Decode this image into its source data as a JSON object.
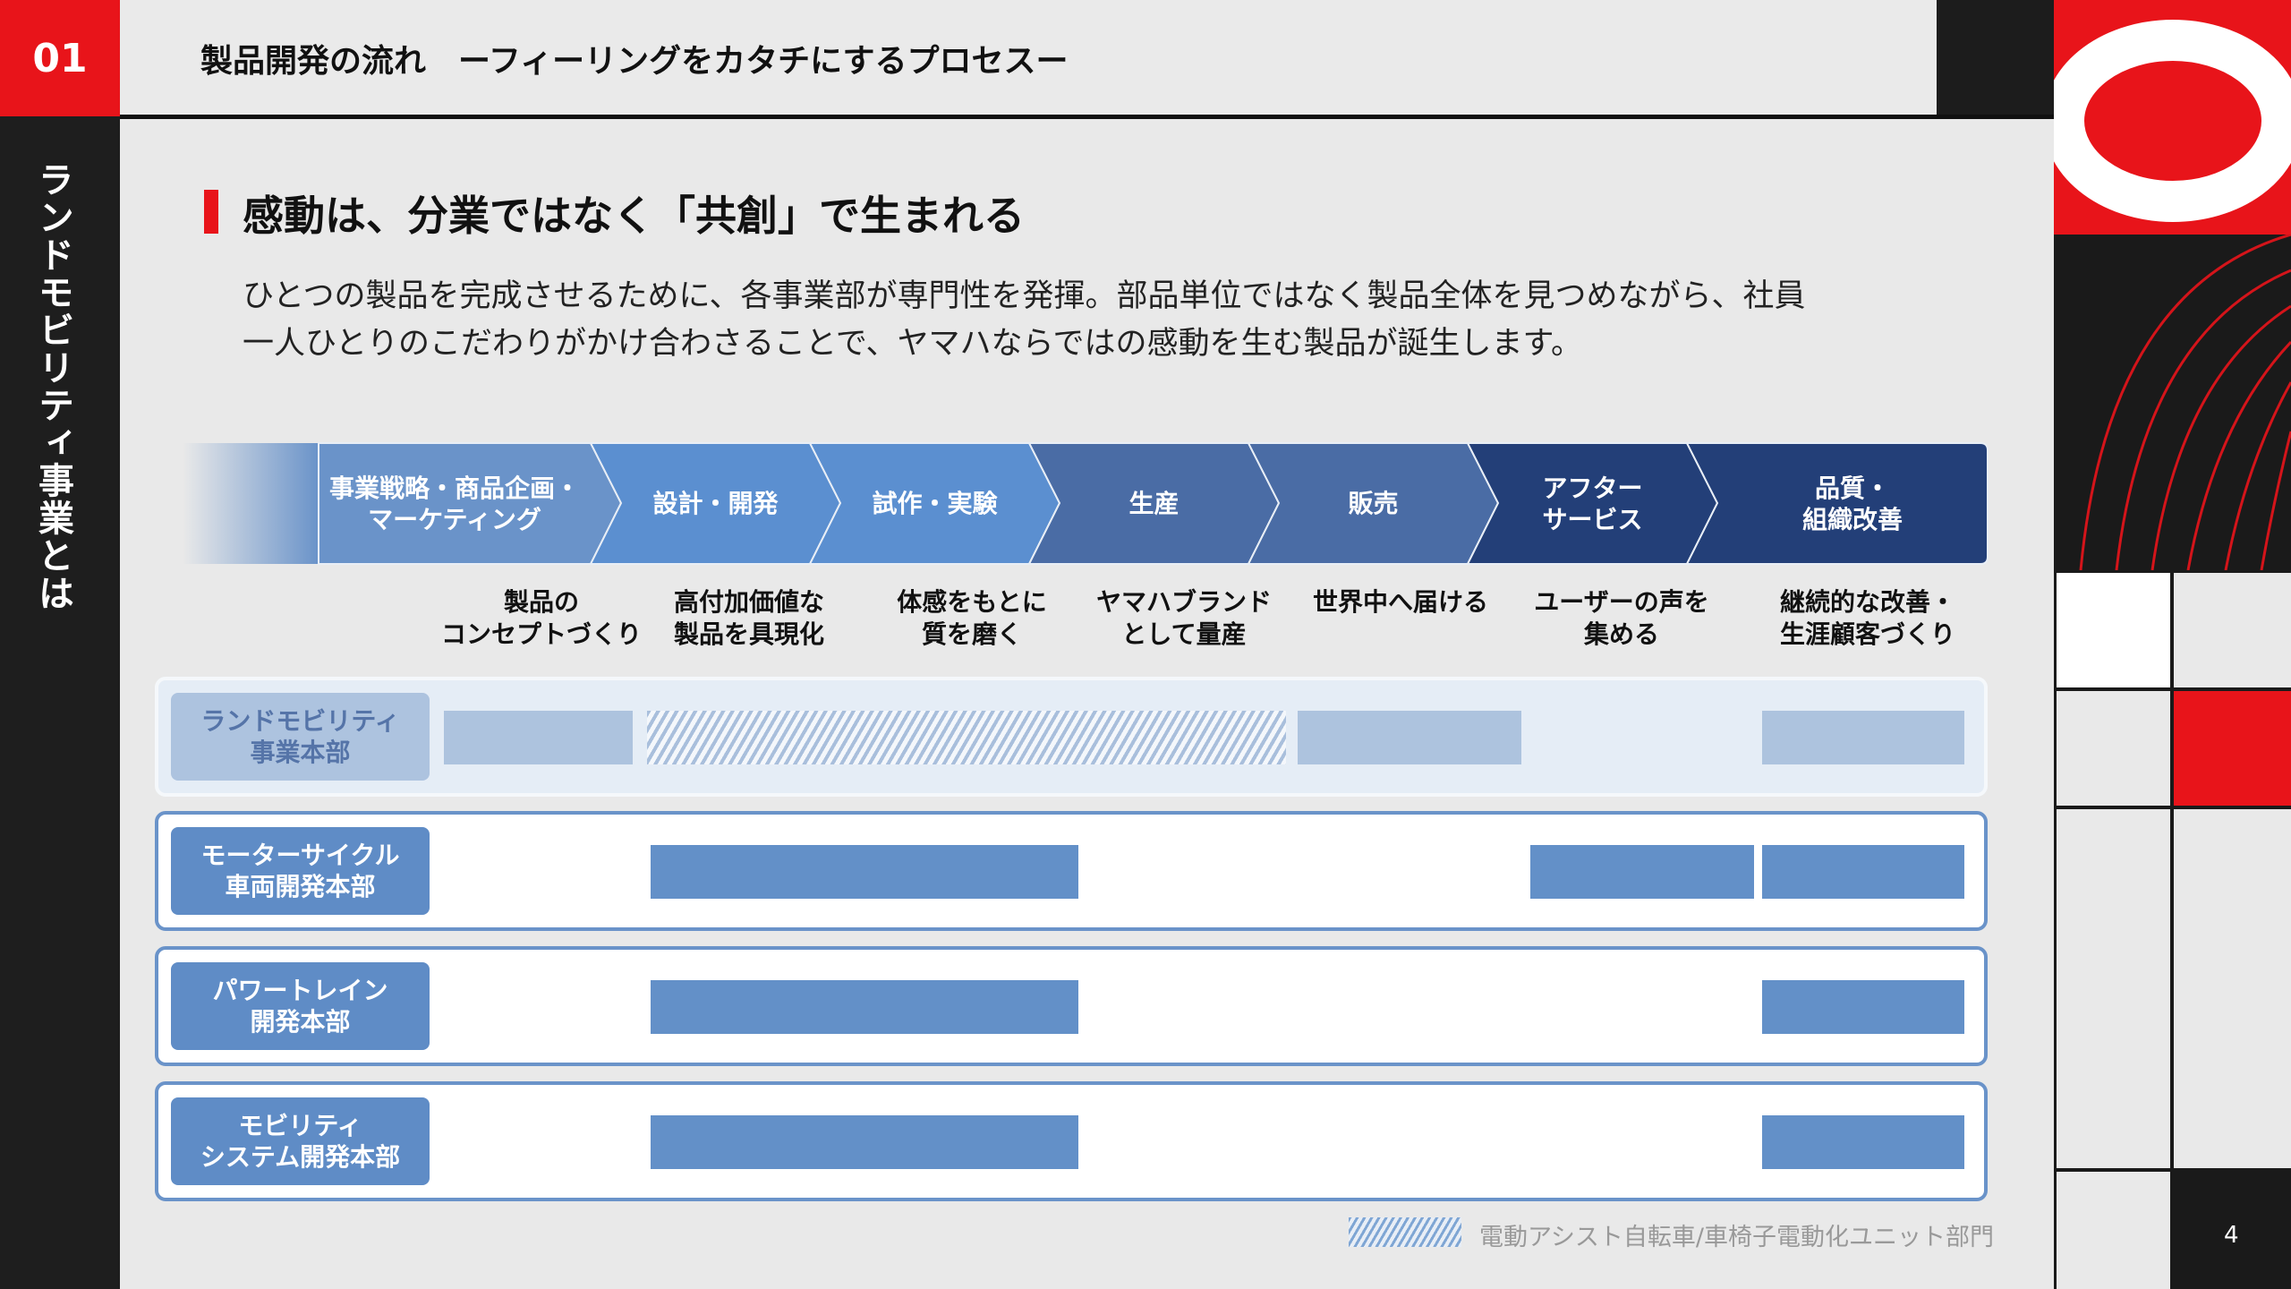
{
  "header": {
    "number": "01",
    "title": "製品開発の流れ　ーフィーリングをカタチにするプロセスー"
  },
  "sidebar": {
    "label": "ランドモビリティ事業とは"
  },
  "headline": "感動は、分業ではなく「共創」で生まれる",
  "body": [
    "ひとつの製品を完成させるために、各事業部が専門性を発揮。部品単位ではなく製品全体を見つめながら、社員",
    "一人ひとりのこだわりがかけ合わさることで、ヤマハならではの感動を生む製品が誕生します。"
  ],
  "stages": [
    {
      "label": "事業戦略・商品企画・\nマーケティング",
      "desc": "製品の\nコンセプトづくり",
      "color": "#6a93c9"
    },
    {
      "label": "設計・開発",
      "desc": "高付加価値な\n製品を具現化",
      "color": "#5b8fd0"
    },
    {
      "label": "試作・実験",
      "desc": "体感をもとに\n質を磨く",
      "color": "#5b8fd0"
    },
    {
      "label": "生産",
      "desc": "ヤマハブランド\nとして量産",
      "color": "#4a6ca5"
    },
    {
      "label": "販売",
      "desc": "世界中へ届ける",
      "color": "#4a6ca5"
    },
    {
      "label": "アフター\nサービス",
      "desc": "ユーザーの声を\n集める",
      "color": "#233f78"
    },
    {
      "label": "品質・\n組織改善",
      "desc": "継続的な改善・\n生涯顧客づくり",
      "color": "#233f78"
    }
  ],
  "departments": [
    {
      "name": "ランドモビリティ\n事業本部"
    },
    {
      "name": "モーターサイクル\n車両開発本部"
    },
    {
      "name": "パワートレイン\n開発本部"
    },
    {
      "name": "モビリティ\nシステム開発本部"
    }
  ],
  "legend": {
    "hatched": "電動アシスト自転車/車椅子電動化ユニット部門"
  },
  "page_number": "4",
  "colors": {
    "accent_red": "#e8141a",
    "dark": "#1c1c1c"
  }
}
